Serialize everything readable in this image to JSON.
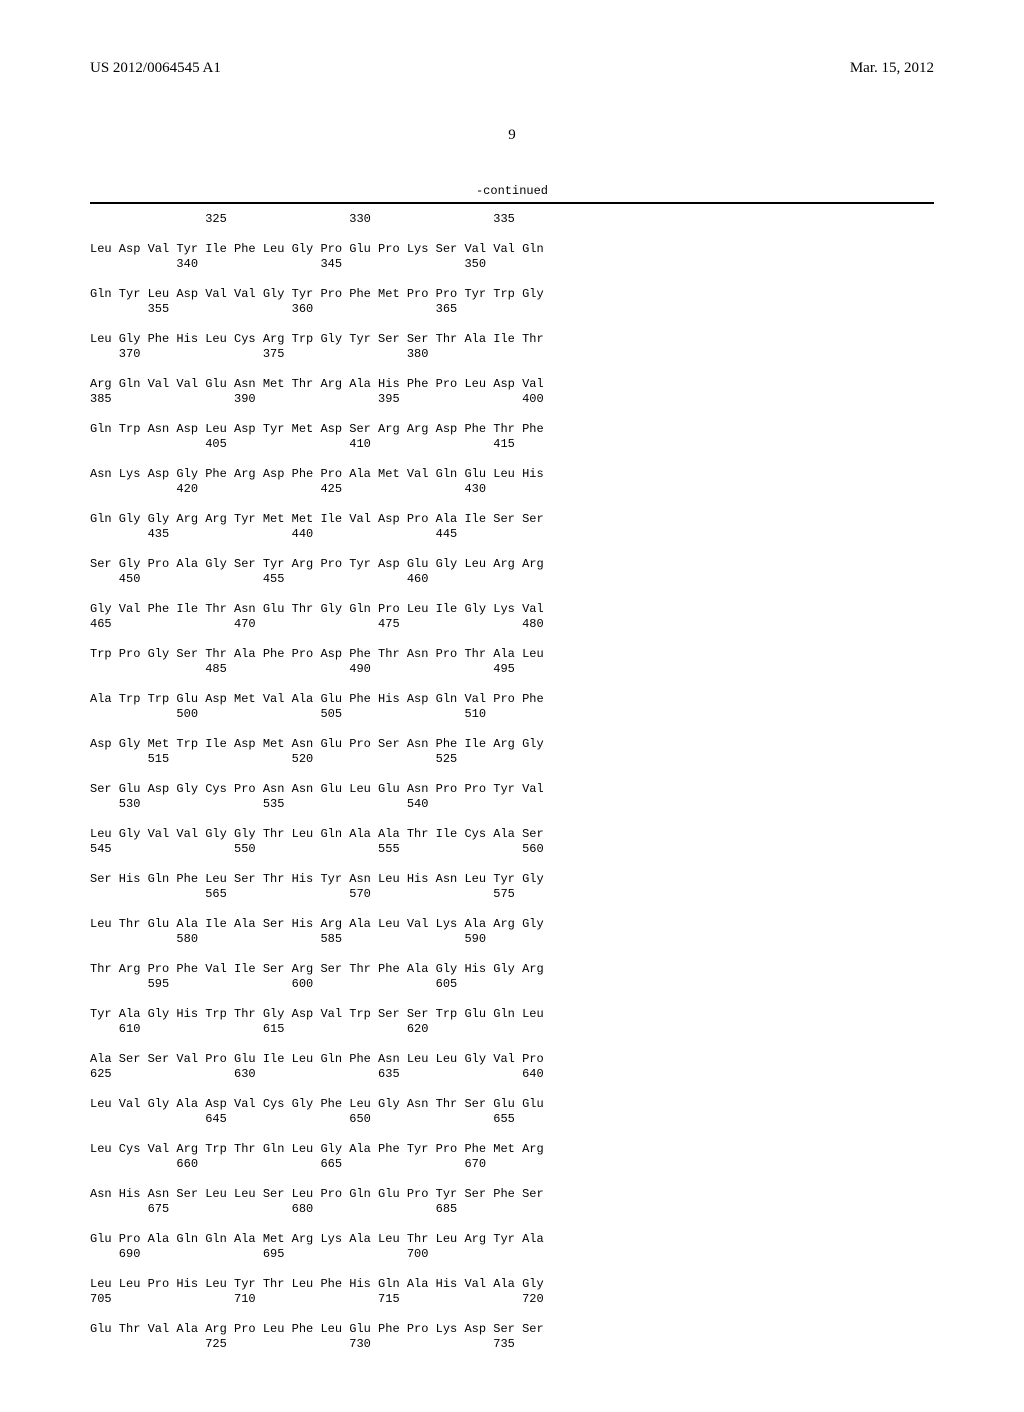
{
  "header": {
    "pub_number": "US 2012/0064545 A1",
    "date": "Mar. 15, 2012"
  },
  "page_number": "9",
  "continued_label": "-continued",
  "sequence_lines": [
    "                325                 330                 335",
    "",
    "Leu Asp Val Tyr Ile Phe Leu Gly Pro Glu Pro Lys Ser Val Val Gln",
    "            340                 345                 350",
    "",
    "Gln Tyr Leu Asp Val Val Gly Tyr Pro Phe Met Pro Pro Tyr Trp Gly",
    "        355                 360                 365",
    "",
    "Leu Gly Phe His Leu Cys Arg Trp Gly Tyr Ser Ser Thr Ala Ile Thr",
    "    370                 375                 380",
    "",
    "Arg Gln Val Val Glu Asn Met Thr Arg Ala His Phe Pro Leu Asp Val",
    "385                 390                 395                 400",
    "",
    "Gln Trp Asn Asp Leu Asp Tyr Met Asp Ser Arg Arg Asp Phe Thr Phe",
    "                405                 410                 415",
    "",
    "Asn Lys Asp Gly Phe Arg Asp Phe Pro Ala Met Val Gln Glu Leu His",
    "            420                 425                 430",
    "",
    "Gln Gly Gly Arg Arg Tyr Met Met Ile Val Asp Pro Ala Ile Ser Ser",
    "        435                 440                 445",
    "",
    "Ser Gly Pro Ala Gly Ser Tyr Arg Pro Tyr Asp Glu Gly Leu Arg Arg",
    "    450                 455                 460",
    "",
    "Gly Val Phe Ile Thr Asn Glu Thr Gly Gln Pro Leu Ile Gly Lys Val",
    "465                 470                 475                 480",
    "",
    "Trp Pro Gly Ser Thr Ala Phe Pro Asp Phe Thr Asn Pro Thr Ala Leu",
    "                485                 490                 495",
    "",
    "Ala Trp Trp Glu Asp Met Val Ala Glu Phe His Asp Gln Val Pro Phe",
    "            500                 505                 510",
    "",
    "Asp Gly Met Trp Ile Asp Met Asn Glu Pro Ser Asn Phe Ile Arg Gly",
    "        515                 520                 525",
    "",
    "Ser Glu Asp Gly Cys Pro Asn Asn Glu Leu Glu Asn Pro Pro Tyr Val",
    "    530                 535                 540",
    "",
    "Leu Gly Val Val Gly Gly Thr Leu Gln Ala Ala Thr Ile Cys Ala Ser",
    "545                 550                 555                 560",
    "",
    "Ser His Gln Phe Leu Ser Thr His Tyr Asn Leu His Asn Leu Tyr Gly",
    "                565                 570                 575",
    "",
    "Leu Thr Glu Ala Ile Ala Ser His Arg Ala Leu Val Lys Ala Arg Gly",
    "            580                 585                 590",
    "",
    "Thr Arg Pro Phe Val Ile Ser Arg Ser Thr Phe Ala Gly His Gly Arg",
    "        595                 600                 605",
    "",
    "Tyr Ala Gly His Trp Thr Gly Asp Val Trp Ser Ser Trp Glu Gln Leu",
    "    610                 615                 620",
    "",
    "Ala Ser Ser Val Pro Glu Ile Leu Gln Phe Asn Leu Leu Gly Val Pro",
    "625                 630                 635                 640",
    "",
    "Leu Val Gly Ala Asp Val Cys Gly Phe Leu Gly Asn Thr Ser Glu Glu",
    "                645                 650                 655",
    "",
    "Leu Cys Val Arg Trp Thr Gln Leu Gly Ala Phe Tyr Pro Phe Met Arg",
    "            660                 665                 670",
    "",
    "Asn His Asn Ser Leu Leu Ser Leu Pro Gln Glu Pro Tyr Ser Phe Ser",
    "        675                 680                 685",
    "",
    "Glu Pro Ala Gln Gln Ala Met Arg Lys Ala Leu Thr Leu Arg Tyr Ala",
    "    690                 695                 700",
    "",
    "Leu Leu Pro His Leu Tyr Thr Leu Phe His Gln Ala His Val Ala Gly",
    "705                 710                 715                 720",
    "",
    "Glu Thr Val Ala Arg Pro Leu Phe Leu Glu Phe Pro Lys Asp Ser Ser",
    "                725                 730                 735"
  ]
}
